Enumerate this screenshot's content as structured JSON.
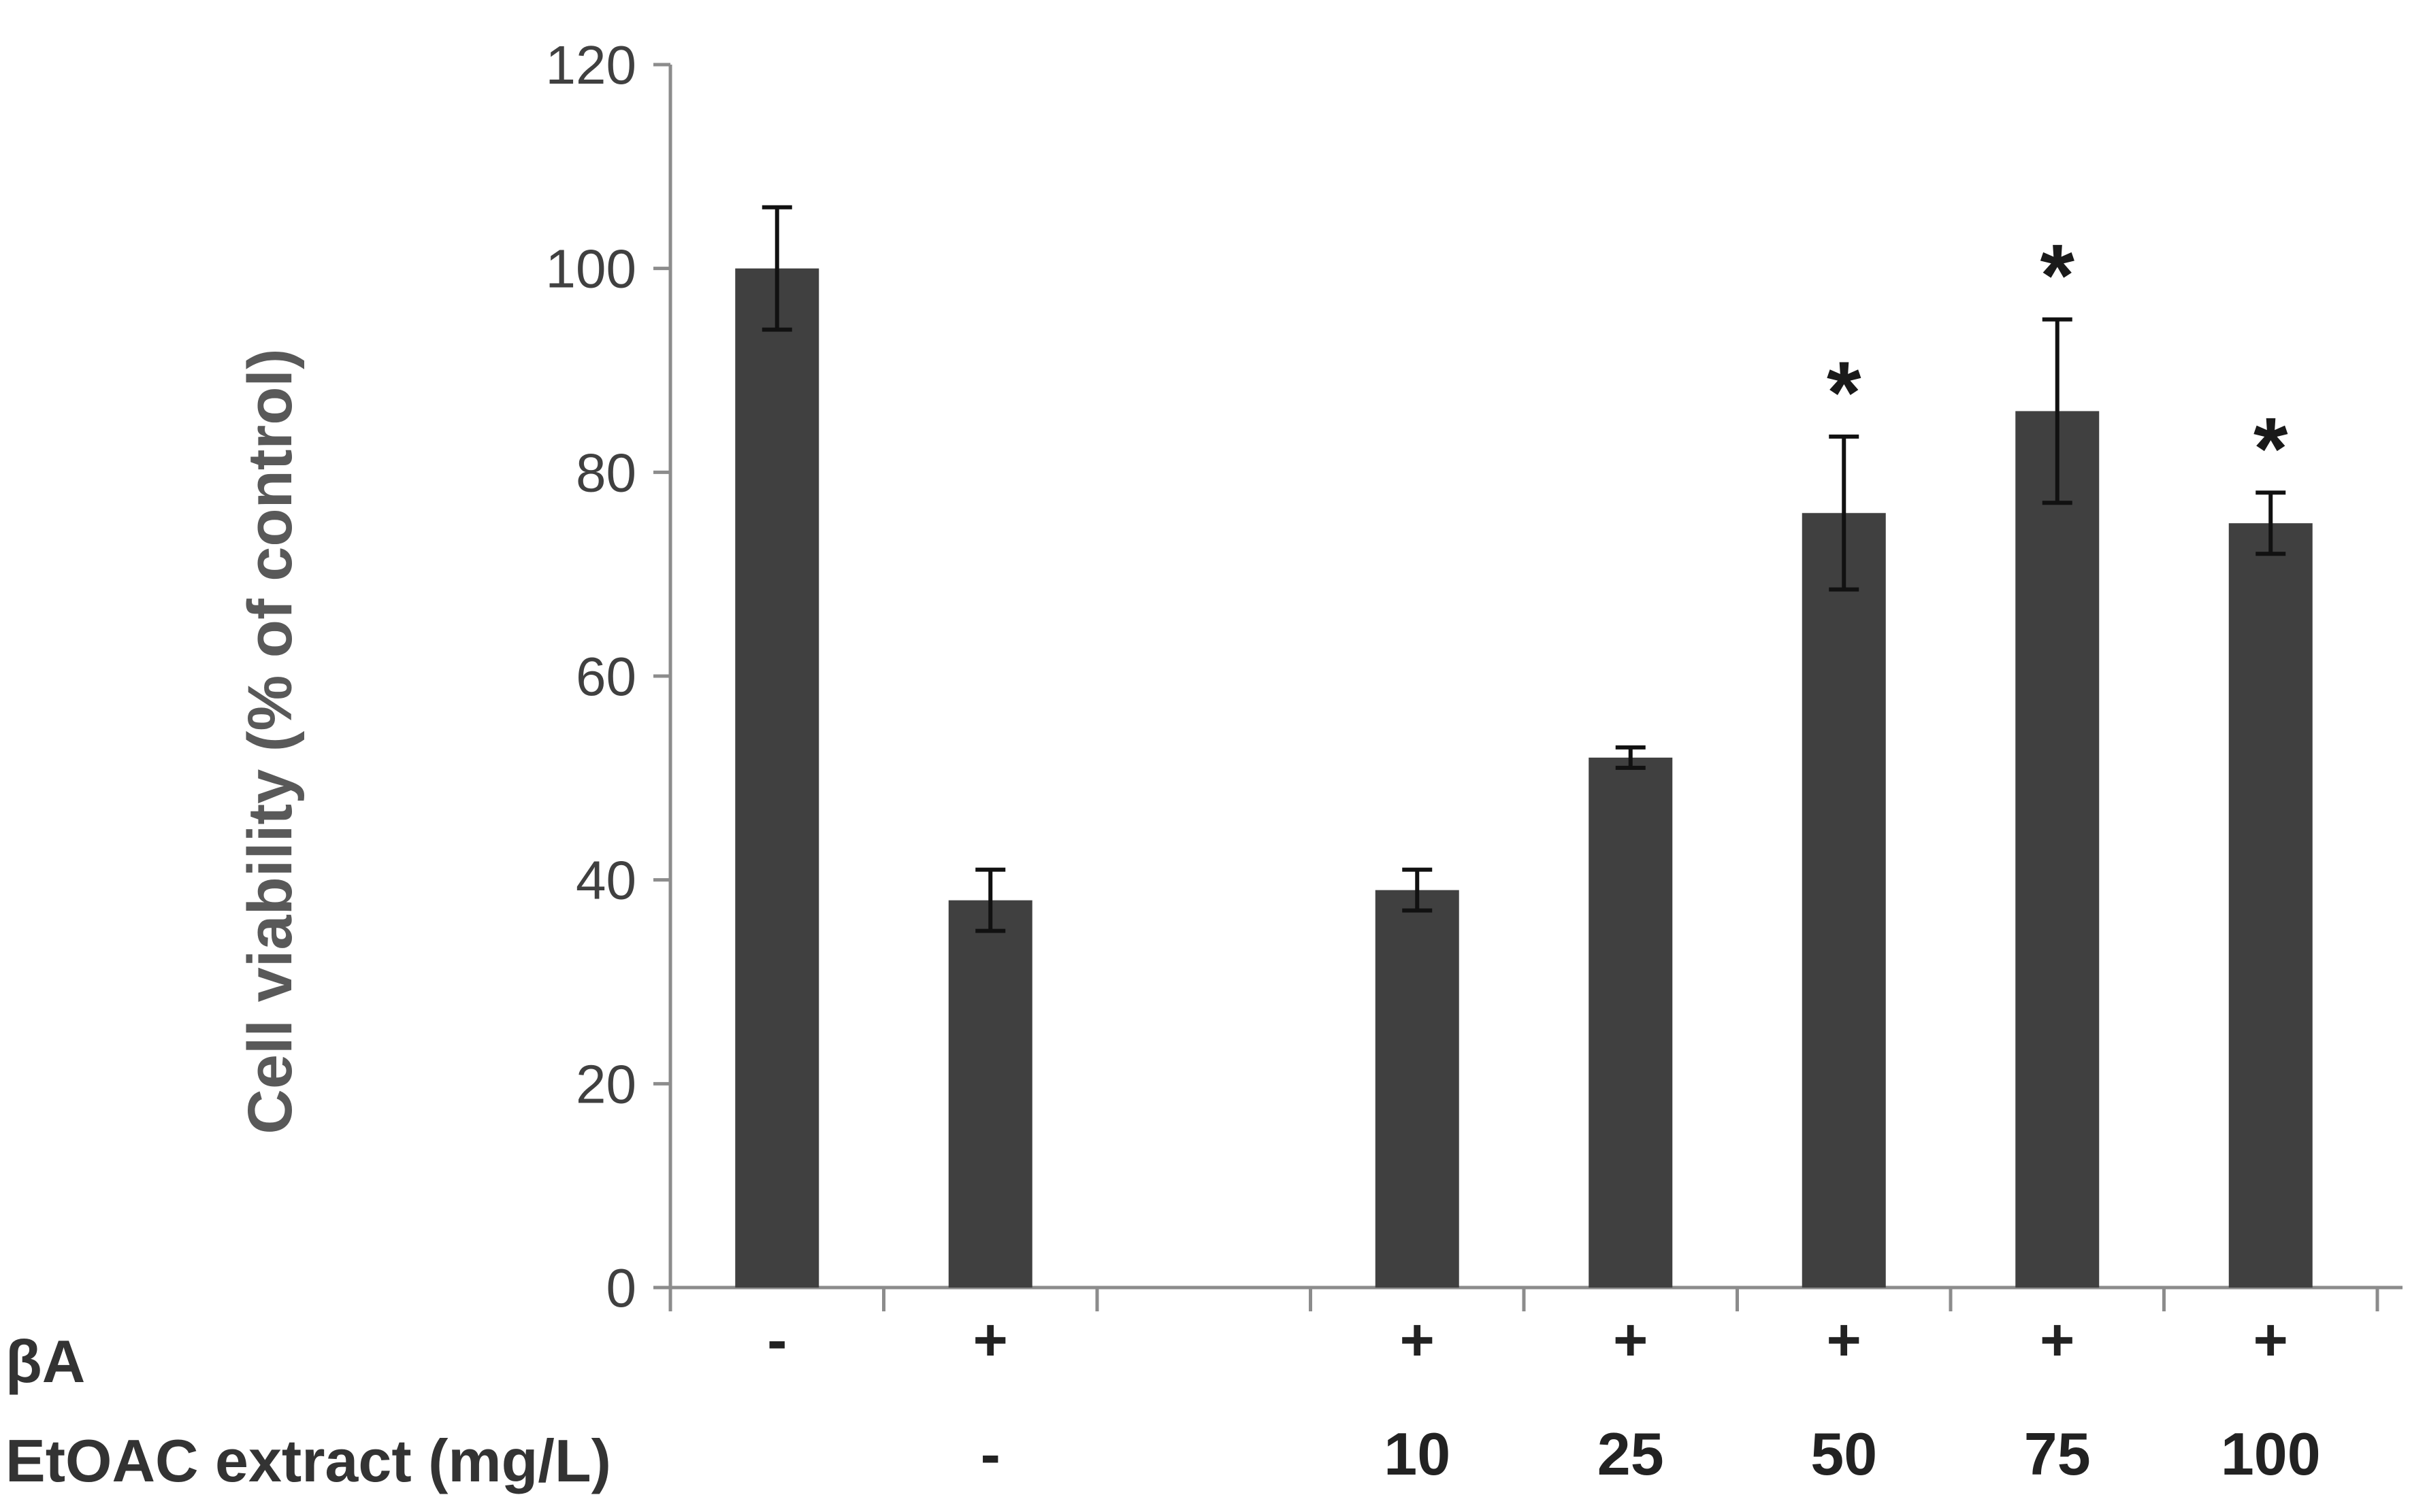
{
  "chart_data": {
    "type": "bar",
    "title": "",
    "ylabel": "Cell viability (% of control)",
    "xlabel": "",
    "ylim": [
      0,
      120
    ],
    "yticks": [
      "0",
      "20",
      "40",
      "60",
      "80",
      "100",
      "120"
    ],
    "grid": false,
    "bar_color": "#404040",
    "row_labels": {
      "beta_a": "βA",
      "extract": "EtOAC extract (mg/L)"
    },
    "categories": [
      {
        "beta_a": "-",
        "extract": "",
        "value": 100,
        "error": 6,
        "significant": false
      },
      {
        "beta_a": "+",
        "extract": "-",
        "value": 38,
        "error": 3,
        "significant": false
      },
      {
        "beta_a": "",
        "extract": "",
        "value": null,
        "error": null,
        "significant": false
      },
      {
        "beta_a": "+",
        "extract": "10",
        "value": 39,
        "error": 2,
        "significant": false
      },
      {
        "beta_a": "+",
        "extract": "25",
        "value": 52,
        "error": 1,
        "significant": false
      },
      {
        "beta_a": "+",
        "extract": "50",
        "value": 76,
        "error": 7.5,
        "significant": true
      },
      {
        "beta_a": "+",
        "extract": "75",
        "value": 86,
        "error": 9,
        "significant": true
      },
      {
        "beta_a": "+",
        "extract": "100",
        "value": 75,
        "error": 3,
        "significant": true
      }
    ],
    "significance_marker": "*"
  }
}
